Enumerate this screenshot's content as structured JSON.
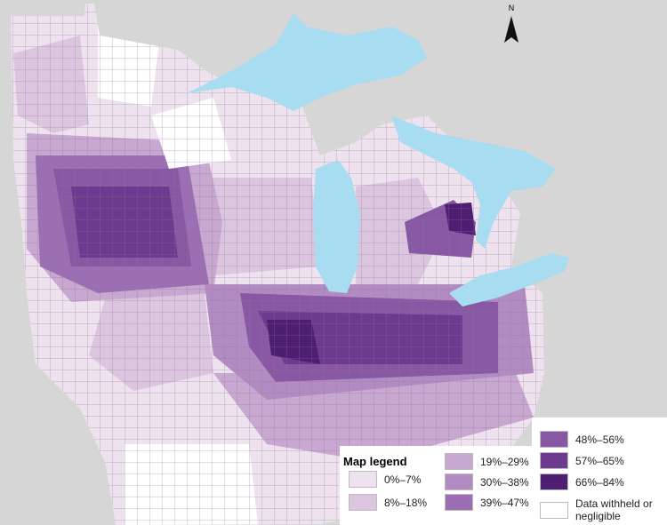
{
  "compass": "N",
  "legend": {
    "title": "Map legend",
    "items": [
      {
        "label": "0%–7%",
        "color": "#eee2ee"
      },
      {
        "label": "8%–18%",
        "color": "#dbc5df"
      },
      {
        "label": "19%–29%",
        "color": "#c8a7d1"
      },
      {
        "label": "30%–38%",
        "color": "#b38bc3"
      },
      {
        "label": "39%–47%",
        "color": "#9c6eb3"
      },
      {
        "label": "48%–56%",
        "color": "#8858a4"
      },
      {
        "label": "57%–65%",
        "color": "#6c3b8f"
      },
      {
        "label": "66%–84%",
        "color": "#4e1e72"
      },
      {
        "label": "Data withheld or negligible",
        "color": "#ffffff"
      }
    ]
  }
}
